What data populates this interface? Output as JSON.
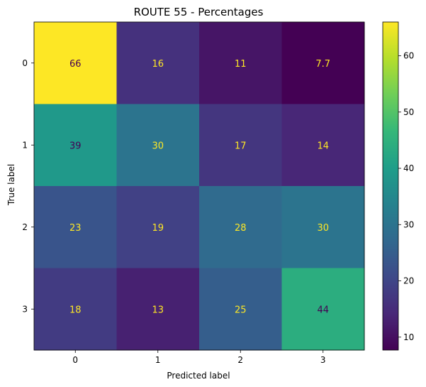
{
  "chart_data": {
    "type": "heatmap",
    "title": "ROUTE 55  - Percentages",
    "xlabel": "Predicted label",
    "ylabel": "True label",
    "x_tick_labels": [
      "0",
      "1",
      "2",
      "3"
    ],
    "y_tick_labels": [
      "0",
      "1",
      "2",
      "3"
    ],
    "cell_labels": [
      [
        "66",
        "16",
        "11",
        "7.7"
      ],
      [
        "39",
        "30",
        "17",
        "14"
      ],
      [
        "23",
        "19",
        "28",
        "30"
      ],
      [
        "18",
        "13",
        "25",
        "44"
      ]
    ],
    "matrix": [
      [
        66,
        16,
        11,
        7.7
      ],
      [
        39,
        30,
        17,
        14
      ],
      [
        23,
        19,
        28,
        30
      ],
      [
        18,
        13,
        25,
        44
      ]
    ],
    "colormap": "viridis",
    "colorbar": {
      "range": [
        7.7,
        66
      ],
      "tick_labels": [
        "10",
        "20",
        "30",
        "40",
        "50",
        "60"
      ],
      "ticks": [
        10,
        20,
        30,
        40,
        50,
        60
      ]
    },
    "annotation_colors": {
      "dark_cell": "#fde725",
      "light_cell": "#440154"
    }
  }
}
